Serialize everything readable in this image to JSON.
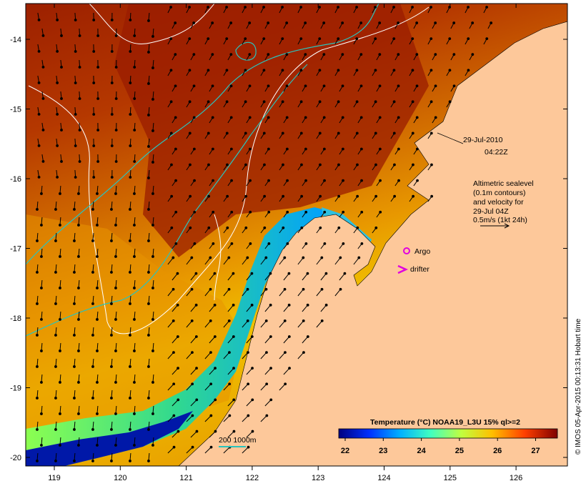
{
  "map": {
    "lon_ticks": [
      "119",
      "120",
      "121",
      "122",
      "123",
      "124",
      "125",
      "126"
    ],
    "lat_ticks": [
      "-14",
      "-15",
      "-16",
      "-17",
      "-18",
      "-19",
      "-20"
    ],
    "land_color": "#fdc89a",
    "contour_color": "#ffffff",
    "isobath_color": "#29c4bd"
  },
  "annotations": {
    "date": "29-Jul-2010",
    "time": "04:22Z",
    "sealevel_lines": [
      "Altimetric sealevel",
      "(0.1m contours)",
      "and velocity for",
      "29-Jul 04Z",
      "0.5m/s (1kt 24h)"
    ],
    "argo_label": "Argo",
    "drifter_label": "drifter",
    "isobath_label": "200  1000m"
  },
  "colorbar": {
    "title": "Temperature (°C) NOAA19_L3U 15% ql>=2",
    "ticks": [
      "22",
      "23",
      "24",
      "25",
      "26",
      "27"
    ],
    "colors": [
      "#00007f",
      "#0040ff",
      "#00c0ff",
      "#40ffbf",
      "#bfff40",
      "#ffc000",
      "#ff4000",
      "#7f0000"
    ]
  },
  "credit": "© IMOS 05-Apr-2015 00:13:31 Hobart time"
}
